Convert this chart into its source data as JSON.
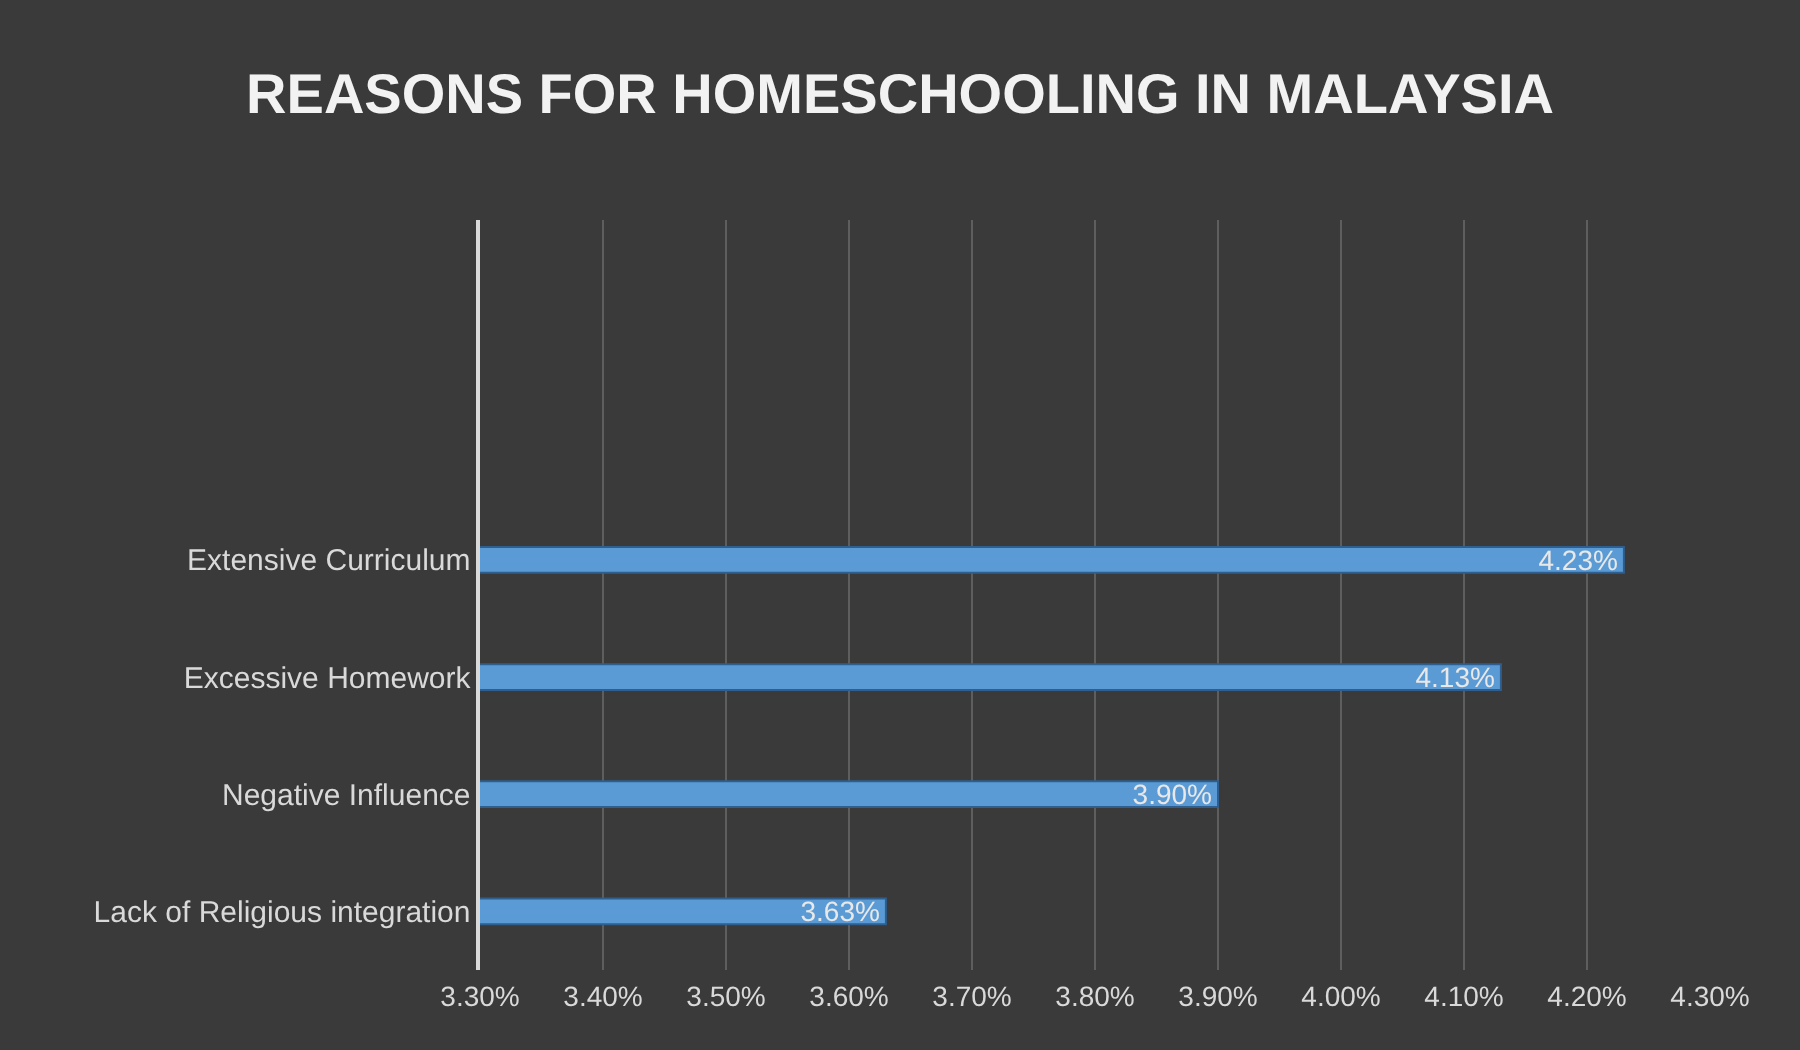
{
  "chart_data": {
    "type": "bar",
    "orientation": "horizontal",
    "title": "REASONS FOR HOMESCHOOLING IN MALAYSIA",
    "categories": [
      "Extensive Curriculum",
      "Excessive Homework",
      "Negative Influence",
      "Lack of Religious integration"
    ],
    "values": [
      4.23,
      4.13,
      3.9,
      3.63
    ],
    "value_labels": [
      "4.23%",
      "4.13%",
      "3.90%",
      "3.63%"
    ],
    "color": "#5b9bd5",
    "xlim": [
      3.3,
      4.3
    ],
    "xticks": [
      {
        "value": 3.3,
        "label": "3.30%"
      },
      {
        "value": 3.4,
        "label": "3.40%"
      },
      {
        "value": 3.5,
        "label": "3.50%"
      },
      {
        "value": 3.6,
        "label": "3.60%"
      },
      {
        "value": 3.7,
        "label": "3.70%"
      },
      {
        "value": 3.8,
        "label": "3.80%"
      },
      {
        "value": 3.9,
        "label": "3.90%"
      },
      {
        "value": 4.0,
        "label": "4.00%"
      },
      {
        "value": 4.1,
        "label": "4.10%"
      },
      {
        "value": 4.2,
        "label": "4.20%"
      },
      {
        "value": 4.3,
        "label": "4.30%"
      }
    ],
    "grid": "x"
  }
}
